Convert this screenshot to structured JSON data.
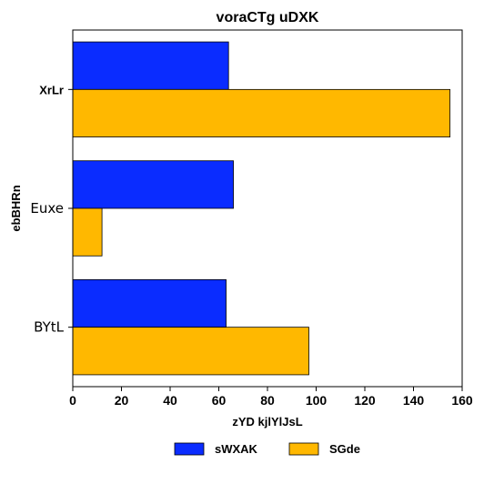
{
  "chart_data": {
    "type": "bar",
    "orientation": "horizontal",
    "title": "voraCTg uDXK",
    "xlabel": "zYD kjlYlJsL",
    "ylabel": "ebBHRn",
    "categories": [
      "XrLr",
      "Euxe",
      "BYtL"
    ],
    "series": [
      {
        "name": "sWXAK",
        "color": "#0a2cff",
        "values": [
          64,
          66,
          63
        ]
      },
      {
        "name": "SGde",
        "color": "#ffb800",
        "values": [
          155,
          12,
          97
        ]
      }
    ],
    "xlim": [
      0,
      160
    ],
    "xticks": [
      0,
      20,
      40,
      60,
      80,
      100,
      120,
      140,
      160
    ],
    "grid": false,
    "legend_position": "bottom-center"
  }
}
